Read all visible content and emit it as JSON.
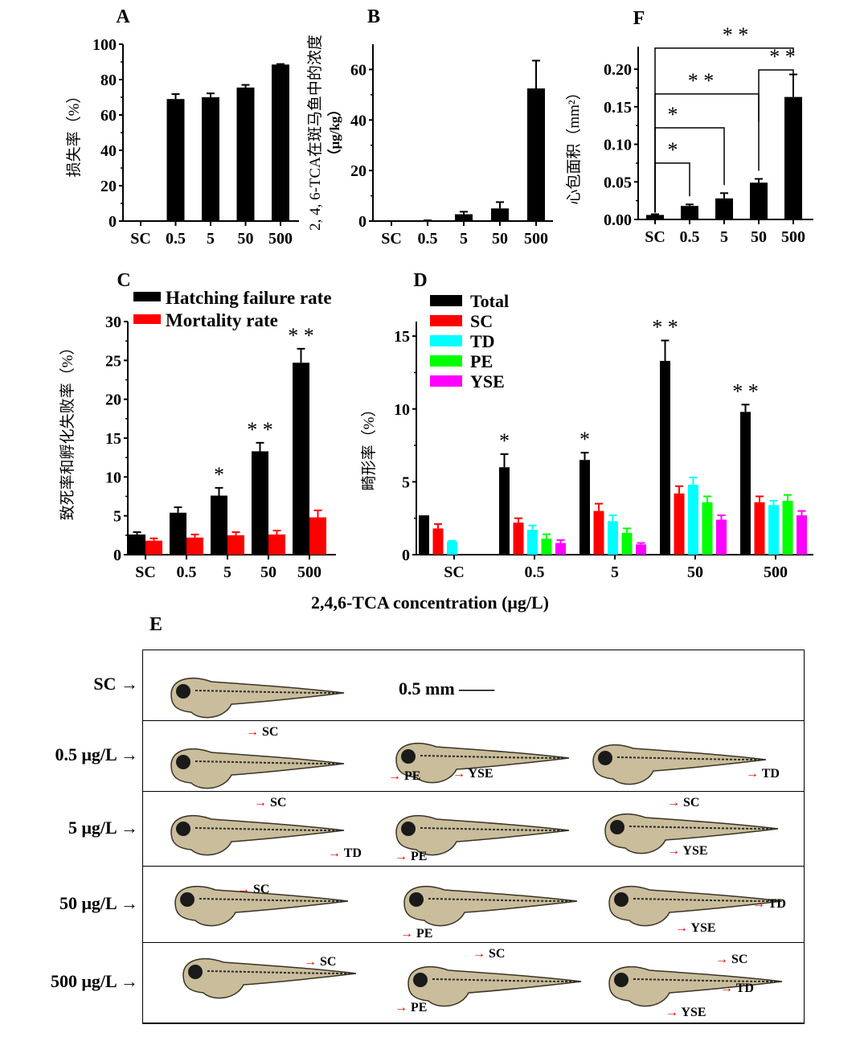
{
  "shared_xlabel": "2,4,6-TCA concentration (μg/L)",
  "chart_data": [
    {
      "id": "A",
      "panel_label": "A",
      "type": "bar",
      "title": "",
      "xlabel": "",
      "ylabel": "损失率（%）",
      "categories": [
        "SC",
        "0.5",
        "5",
        "50",
        "500"
      ],
      "series": [
        {
          "name": "损失率",
          "color": "#000000",
          "values": [
            0,
            69,
            70,
            75.5,
            88.5
          ],
          "errors": [
            0,
            2.8,
            2.2,
            1.5,
            0.3
          ]
        }
      ],
      "ylim": [
        0,
        100
      ],
      "yticks": [
        0,
        20,
        40,
        60,
        80,
        100
      ],
      "grid": false
    },
    {
      "id": "B",
      "panel_label": "B",
      "type": "bar",
      "xlabel": "",
      "ylabel": "2, 4, 6-TCA在斑马鱼中的浓度",
      "ylabel2": "（μg/kg）",
      "categories": [
        "SC",
        "0.5",
        "5",
        "50",
        "500"
      ],
      "series": [
        {
          "name": "浓度",
          "color": "#000000",
          "values": [
            0,
            0.1,
            2.7,
            5,
            52.5
          ],
          "errors": [
            0,
            0.2,
            1,
            2.5,
            11
          ]
        }
      ],
      "ylim": [
        0,
        70
      ],
      "yticks": [
        0,
        20,
        40,
        60
      ],
      "grid": false
    },
    {
      "id": "F",
      "panel_label": "F",
      "type": "bar",
      "xlabel": "",
      "ylabel": "心包面积（mm²）",
      "categories": [
        "SC",
        "0.5",
        "5",
        "50",
        "500"
      ],
      "series": [
        {
          "name": "心包面积",
          "color": "#000000",
          "values": [
            0.006,
            0.018,
            0.028,
            0.049,
            0.163
          ],
          "errors": [
            0.001,
            0.002,
            0.007,
            0.005,
            0.03
          ]
        }
      ],
      "ylim": [
        0,
        0.23
      ],
      "yticks": [
        0.0,
        0.05,
        0.1,
        0.15,
        0.2
      ],
      "ytick_labels": [
        "0.00",
        "0.05",
        "0.10",
        "0.15",
        "0.20"
      ],
      "significance": [
        {
          "from": "SC",
          "to": "0.5",
          "label": "*",
          "level": 0.075
        },
        {
          "from": "SC",
          "to": "5",
          "label": "*",
          "level": 0.122
        },
        {
          "from": "SC",
          "to": "50",
          "label": "**",
          "level": 0.167
        },
        {
          "from": "SC",
          "to": "500",
          "label": "**",
          "level": 0.228
        },
        {
          "from": "50",
          "to": "500",
          "label": "**",
          "level": 0.199
        }
      ],
      "grid": false
    },
    {
      "id": "C",
      "panel_label": "C",
      "type": "bar",
      "xlabel": "",
      "ylabel": "致死率和孵化失败率（%）",
      "categories": [
        "SC",
        "0.5",
        "5",
        "50",
        "500"
      ],
      "series": [
        {
          "name": "Hatching failure rate",
          "color": "#000000",
          "values": [
            2.6,
            5.4,
            7.6,
            13.3,
            24.7
          ],
          "errors": [
            0.3,
            0.7,
            1,
            1.1,
            1.8
          ]
        },
        {
          "name": "Mortality rate",
          "color": "#ff0000",
          "values": [
            1.8,
            2.2,
            2.5,
            2.6,
            4.8
          ],
          "errors": [
            0.3,
            0.4,
            0.4,
            0.5,
            0.9
          ]
        }
      ],
      "significance_labels": [
        "",
        "",
        "*",
        "**",
        "**"
      ],
      "ylim": [
        0,
        30
      ],
      "yticks": [
        0,
        5,
        10,
        15,
        20,
        25,
        30
      ],
      "legend_position": "top",
      "grid": false
    },
    {
      "id": "D",
      "panel_label": "D",
      "type": "bar",
      "xlabel": "",
      "ylabel": "畸形率（%）",
      "categories": [
        "SC",
        "0.5",
        "5",
        "50",
        "500"
      ],
      "series": [
        {
          "name": "Total",
          "color": "#000000",
          "values": [
            2.7,
            6.0,
            6.5,
            13.3,
            9.8
          ],
          "errors": [
            0,
            0.9,
            0.5,
            1.4,
            0.5
          ]
        },
        {
          "name": "SC",
          "color": "#ff0000",
          "values": [
            1.8,
            2.2,
            3.0,
            4.2,
            3.6
          ],
          "errors": [
            0.3,
            0.3,
            0.5,
            0.5,
            0.4
          ]
        },
        {
          "name": "TD",
          "color": "#00ffff",
          "values": [
            0.9,
            1.7,
            2.3,
            4.8,
            3.4
          ],
          "errors": [
            0.05,
            0.3,
            0.4,
            0.5,
            0.3
          ]
        },
        {
          "name": "PE",
          "color": "#00ff00",
          "values": [
            0,
            1.1,
            1.5,
            3.6,
            3.7
          ],
          "errors": [
            0,
            0.3,
            0.3,
            0.4,
            0.4
          ]
        },
        {
          "name": "YSE",
          "color": "#ff00ff",
          "values": [
            0,
            0.8,
            0.7,
            2.4,
            2.7
          ],
          "errors": [
            0,
            0.2,
            0.1,
            0.3,
            0.3
          ]
        }
      ],
      "significance_labels": [
        "",
        "*",
        "*",
        "**",
        "**"
      ],
      "ylim": [
        0,
        16
      ],
      "yticks": [
        0,
        5,
        10,
        15
      ],
      "legend_position": "top-left",
      "grid": false
    }
  ],
  "panel_e": {
    "label": "E",
    "scale_bar": "0.5 mm",
    "rows": [
      {
        "label": "SC",
        "annotations": []
      },
      {
        "label": "0.5 μg/L",
        "annotations": [
          "SC",
          "PE",
          "YSE",
          "TD"
        ]
      },
      {
        "label": "5 μg/L",
        "annotations": [
          "SC",
          "TD",
          "PE",
          "SC",
          "YSE"
        ]
      },
      {
        "label": "50 μg/L",
        "annotations": [
          "SC",
          "PE",
          "TD",
          "YSE"
        ]
      },
      {
        "label": "500 μg/L",
        "annotations": [
          "SC",
          "SC",
          "PE",
          "SC",
          "TD",
          "YSE"
        ]
      }
    ]
  }
}
